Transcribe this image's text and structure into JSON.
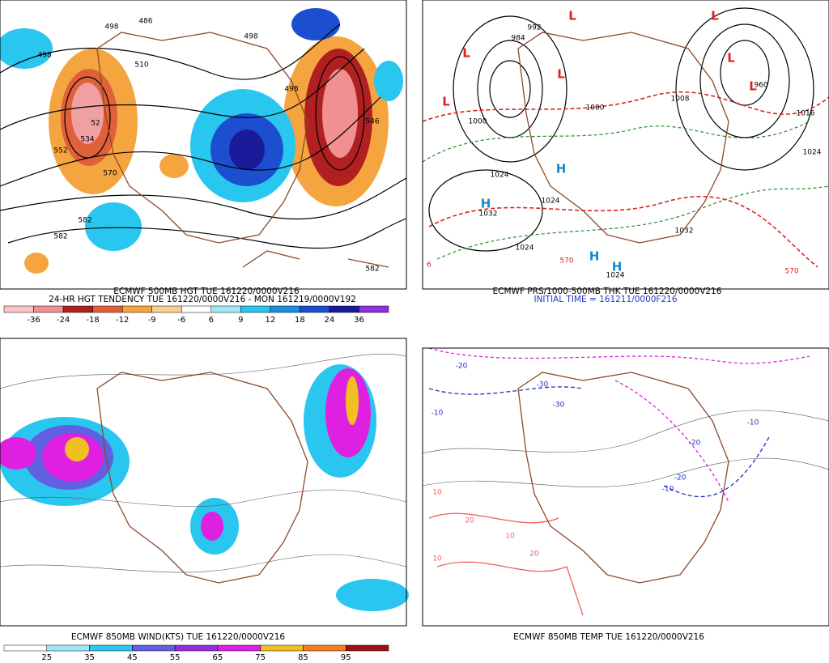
{
  "panels": [
    {
      "captions": [
        "ECMWF 500MB HGT TUE 161220/0000V216",
        "24-HR HGT TENDENCY TUE 161220/0000V216 - MON 161219/0000V192"
      ],
      "colorbar": {
        "colors": [
          "#f8c8c8",
          "#f09090",
          "#b02020",
          "#e0603a",
          "#f5a540",
          "#f8d090",
          "#ffffff",
          "#a0e8f8",
          "#29c6f0",
          "#1c8fe0",
          "#1c4fd0",
          "#1a1a9a",
          "#9030e0"
        ],
        "labels": [
          -36,
          -24,
          -18,
          -12,
          -9,
          -6,
          6,
          9,
          12,
          18,
          24,
          36
        ]
      },
      "contour_labels": [
        "498",
        "486",
        "498",
        "498",
        "510",
        "52",
        "534",
        "552",
        "570",
        "582",
        "582",
        "582",
        "498",
        "546"
      ]
    },
    {
      "captions": [
        "ECMWF PRS/1000-500MB THK TUE 161220/0000V216",
        "INITIAL TIME = 161211/0000F216"
      ],
      "contour_labels": [
        "992",
        "984",
        "960",
        "1000",
        "1000",
        "1008",
        "1024",
        "1032",
        "1024",
        "1024",
        "1016",
        "1024",
        "1032",
        "1024",
        "570",
        "570",
        "6"
      ],
      "pressure_centers": [
        "L",
        "L",
        "L",
        "L",
        "L",
        "L",
        "L",
        "H",
        "H",
        "H",
        "H"
      ]
    },
    {
      "captions": [
        "ECMWF 850MB WIND(KTS) TUE 161220/0000V216"
      ],
      "colorbar": {
        "colors": [
          "#ffffff",
          "#a0e8f8",
          "#29c6f0",
          "#6060e0",
          "#9030e0",
          "#e020e0",
          "#f0c020",
          "#f08020",
          "#a01010"
        ],
        "labels": [
          25,
          35,
          45,
          55,
          65,
          75,
          85,
          95
        ]
      }
    },
    {
      "captions": [
        "ECMWF 850MB TEMP TUE 161220/0000V216"
      ],
      "contour_labels": [
        "-20",
        "-30",
        "-10",
        "-30",
        "-20",
        "-10",
        "-20",
        "-10",
        "10",
        "20",
        "10",
        "20",
        "10"
      ]
    }
  ]
}
